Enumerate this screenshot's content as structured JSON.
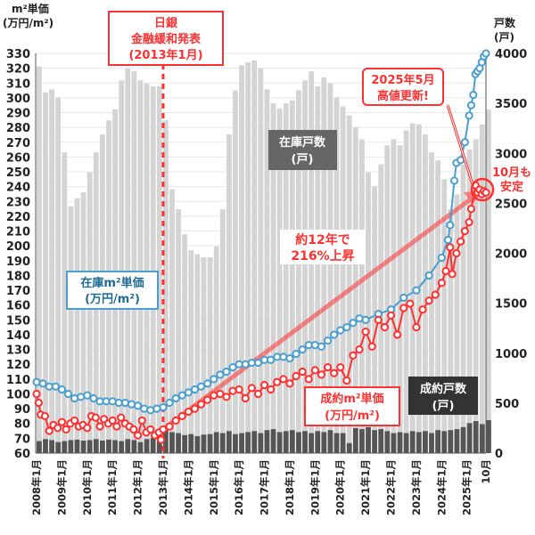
{
  "chart_data": {
    "type": "bar+line",
    "left_axis": {
      "title_line1": "m²単価",
      "title_line2": "(万円/m²)",
      "range": [
        60,
        330
      ],
      "ticks": [
        60,
        70,
        80,
        90,
        100,
        110,
        120,
        130,
        140,
        150,
        160,
        170,
        180,
        190,
        200,
        210,
        220,
        230,
        240,
        250,
        260,
        270,
        280,
        290,
        300,
        310,
        320,
        330
      ]
    },
    "right_axis": {
      "title_line1": "戸数",
      "title_line2": "(戸)",
      "range": [
        0,
        4000
      ],
      "ticks": [
        0,
        500,
        1000,
        1500,
        2000,
        2500,
        3000,
        3500,
        4000
      ]
    },
    "x_axis": {
      "range": [
        "2008-01",
        "2025-10"
      ],
      "tick_dates": [
        "2008-01",
        "2009-01",
        "2010-01",
        "2011-01",
        "2012-01",
        "2013-01",
        "2014-01",
        "2015-01",
        "2016-01",
        "2017-01",
        "2018-01",
        "2019-01",
        "2020-01",
        "2021-01",
        "2022-01",
        "2023-01",
        "2024-01",
        "2025-01",
        "2025-10"
      ],
      "tick_labels": [
        "2008年1月",
        "2009年1月",
        "2010年1月",
        "2011年1月",
        "2012年1月",
        "2013年1月",
        "2014年1月",
        "2015年1月",
        "2016年1月",
        "2017年1月",
        "2018年1月",
        "2019年1月",
        "2020年1月",
        "2021年1月",
        "2022年1月",
        "2023年1月",
        "2024年1月",
        "2025年1月",
        "10月"
      ]
    },
    "grid": "horizontal",
    "series": [
      {
        "name": "在庫戸数(戸)",
        "kind": "bar",
        "axis": "right",
        "color": "#d4d4d4",
        "dates": [
          "2008-01",
          "2008-04",
          "2008-07",
          "2008-10",
          "2009-01",
          "2009-04",
          "2009-07",
          "2009-10",
          "2010-01",
          "2010-04",
          "2010-07",
          "2010-10",
          "2011-01",
          "2011-04",
          "2011-07",
          "2011-10",
          "2012-01",
          "2012-04",
          "2012-07",
          "2012-10",
          "2013-01",
          "2013-04",
          "2013-07",
          "2013-10",
          "2014-01",
          "2014-04",
          "2014-07",
          "2014-10",
          "2015-01",
          "2015-04",
          "2015-07",
          "2015-10",
          "2016-01",
          "2016-04",
          "2016-07",
          "2016-10",
          "2017-01",
          "2017-04",
          "2017-07",
          "2017-10",
          "2018-01",
          "2018-04",
          "2018-07",
          "2018-10",
          "2019-01",
          "2019-04",
          "2019-07",
          "2019-10",
          "2020-01",
          "2020-04",
          "2020-07",
          "2020-10",
          "2021-01",
          "2021-04",
          "2021-07",
          "2021-10",
          "2022-01",
          "2022-04",
          "2022-07",
          "2022-10",
          "2023-01",
          "2023-04",
          "2023-07",
          "2023-10",
          "2024-01",
          "2024-04",
          "2024-07",
          "2024-10",
          "2025-01",
          "2025-04",
          "2025-07",
          "2025-10"
        ],
        "values": [
          3870,
          3610,
          3640,
          3560,
          3010,
          2470,
          2550,
          2610,
          2810,
          3010,
          3190,
          3330,
          3440,
          3730,
          3850,
          3820,
          3730,
          3700,
          3670,
          3670,
          3330,
          2640,
          2440,
          2190,
          2030,
          1990,
          1960,
          1960,
          2070,
          2440,
          3190,
          3630,
          3880,
          3910,
          3930,
          3850,
          3640,
          3500,
          3450,
          3500,
          3530,
          3630,
          3730,
          3820,
          3670,
          3760,
          3700,
          3560,
          3470,
          3380,
          3260,
          3140,
          2810,
          2670,
          2890,
          3080,
          3140,
          3080,
          3230,
          3300,
          3290,
          3190,
          3010,
          2930,
          2740,
          2440,
          2590,
          2890,
          3040,
          3140,
          3290,
          3440
        ]
      },
      {
        "name": "成約戸数(戸)",
        "kind": "bar",
        "axis": "right",
        "color": "#555555",
        "dates": [
          "2008-01",
          "2008-04",
          "2008-07",
          "2008-10",
          "2009-01",
          "2009-04",
          "2009-07",
          "2009-10",
          "2010-01",
          "2010-04",
          "2010-07",
          "2010-10",
          "2011-01",
          "2011-04",
          "2011-07",
          "2011-10",
          "2012-01",
          "2012-04",
          "2012-07",
          "2012-10",
          "2013-01",
          "2013-04",
          "2013-07",
          "2013-10",
          "2014-01",
          "2014-04",
          "2014-07",
          "2014-10",
          "2015-01",
          "2015-04",
          "2015-07",
          "2015-10",
          "2016-01",
          "2016-04",
          "2016-07",
          "2016-10",
          "2017-01",
          "2017-04",
          "2017-07",
          "2017-10",
          "2018-01",
          "2018-04",
          "2018-07",
          "2018-10",
          "2019-01",
          "2019-04",
          "2019-07",
          "2019-10",
          "2020-01",
          "2020-04",
          "2020-07",
          "2020-10",
          "2021-01",
          "2021-04",
          "2021-07",
          "2021-10",
          "2022-01",
          "2022-04",
          "2022-07",
          "2022-10",
          "2023-01",
          "2023-04",
          "2023-07",
          "2023-10",
          "2024-01",
          "2024-04",
          "2024-07",
          "2024-10",
          "2025-01",
          "2025-04",
          "2025-07",
          "2025-10"
        ],
        "values": [
          120,
          140,
          130,
          110,
          120,
          130,
          135,
          125,
          130,
          140,
          125,
          135,
          130,
          120,
          140,
          130,
          110,
          140,
          150,
          145,
          230,
          210,
          200,
          180,
          190,
          170,
          185,
          190,
          210,
          200,
          220,
          190,
          200,
          210,
          220,
          200,
          230,
          240,
          210,
          220,
          230,
          210,
          220,
          200,
          220,
          210,
          230,
          200,
          200,
          100,
          250,
          240,
          260,
          230,
          240,
          220,
          200,
          210,
          200,
          220,
          210,
          220,
          200,
          230,
          220,
          230,
          240,
          260,
          300,
          320,
          290,
          330
        ]
      },
      {
        "name": "在庫m²単価(万円/m²)",
        "kind": "line",
        "axis": "left",
        "color": "#4a9fd0",
        "dates": [
          "2008-01",
          "2008-04",
          "2008-07",
          "2008-10",
          "2009-01",
          "2009-04",
          "2009-07",
          "2009-10",
          "2010-01",
          "2010-04",
          "2010-07",
          "2010-10",
          "2011-01",
          "2011-04",
          "2011-07",
          "2011-10",
          "2012-01",
          "2012-04",
          "2012-07",
          "2012-10",
          "2013-01",
          "2013-04",
          "2013-07",
          "2013-10",
          "2014-01",
          "2014-04",
          "2014-07",
          "2014-10",
          "2015-01",
          "2015-04",
          "2015-07",
          "2015-10",
          "2016-01",
          "2016-04",
          "2016-07",
          "2016-10",
          "2017-01",
          "2017-04",
          "2017-07",
          "2017-10",
          "2018-01",
          "2018-04",
          "2018-07",
          "2018-10",
          "2019-01",
          "2019-04",
          "2019-07",
          "2019-10",
          "2020-01",
          "2020-04",
          "2020-07",
          "2020-10",
          "2021-01",
          "2021-07",
          "2022-01",
          "2022-07",
          "2023-01",
          "2023-07",
          "2024-01",
          "2024-04",
          "2024-05",
          "2024-07",
          "2024-08",
          "2024-10",
          "2024-12",
          "2025-02",
          "2025-03",
          "2025-04",
          "2025-05",
          "2025-06",
          "2025-07",
          "2025-08",
          "2025-09",
          "2025-10"
        ],
        "values": [
          108,
          107,
          105,
          105,
          103,
          100,
          97,
          98,
          99,
          97,
          95,
          95,
          95,
          94,
          94,
          93,
          92,
          90,
          89,
          90,
          91,
          94,
          97,
          99,
          101,
          103,
          105,
          107,
          110,
          113,
          115,
          118,
          120,
          120,
          121,
          121,
          123,
          123,
          125,
          125,
          124,
          127,
          130,
          133,
          133,
          132,
          136,
          140,
          143,
          145,
          148,
          151,
          150,
          154,
          157,
          165,
          170,
          180,
          192,
          204,
          214,
          244,
          256,
          258,
          270,
          288,
          295,
          302,
          316,
          318,
          320,
          324,
          328,
          330
        ]
      },
      {
        "name": "成約m²単価(万円/m²)",
        "kind": "line",
        "axis": "left",
        "color": "#ff3030",
        "dates": [
          "2008-01",
          "2008-02",
          "2008-03",
          "2008-05",
          "2008-07",
          "2008-09",
          "2008-11",
          "2009-01",
          "2009-03",
          "2009-05",
          "2009-07",
          "2009-09",
          "2009-11",
          "2010-01",
          "2010-03",
          "2010-05",
          "2010-07",
          "2010-09",
          "2010-11",
          "2011-01",
          "2011-03",
          "2011-05",
          "2011-07",
          "2011-09",
          "2011-11",
          "2012-01",
          "2012-03",
          "2012-05",
          "2012-07",
          "2012-09",
          "2012-11",
          "2012-12",
          "2013-01",
          "2013-04",
          "2013-07",
          "2013-10",
          "2014-01",
          "2014-04",
          "2014-07",
          "2014-10",
          "2015-01",
          "2015-04",
          "2015-07",
          "2015-10",
          "2016-01",
          "2016-04",
          "2016-07",
          "2016-10",
          "2017-01",
          "2017-04",
          "2017-07",
          "2017-10",
          "2018-01",
          "2018-04",
          "2018-07",
          "2018-10",
          "2019-01",
          "2019-04",
          "2019-07",
          "2019-10",
          "2020-01",
          "2020-04",
          "2020-07",
          "2020-10",
          "2021-01",
          "2021-04",
          "2021-07",
          "2021-10",
          "2022-01",
          "2022-04",
          "2022-07",
          "2022-10",
          "2023-01",
          "2023-04",
          "2023-07",
          "2023-10",
          "2024-01",
          "2024-03",
          "2024-05",
          "2024-06",
          "2024-08",
          "2024-10",
          "2024-12",
          "2025-02",
          "2025-03",
          "2025-05",
          "2025-06",
          "2025-07",
          "2025-08",
          "2025-09",
          "2025-10"
        ],
        "values": [
          100,
          94,
          86,
          85,
          75,
          79,
          77,
          81,
          76,
          80,
          82,
          78,
          79,
          77,
          85,
          84,
          78,
          83,
          80,
          82,
          78,
          84,
          80,
          78,
          76,
          72,
          82,
          74,
          76,
          72,
          74,
          69,
          76,
          78,
          82,
          85,
          88,
          90,
          93,
          96,
          99,
          100,
          98,
          102,
          103,
          97,
          104,
          100,
          106,
          103,
          108,
          110,
          107,
          112,
          115,
          110,
          116,
          113,
          118,
          114,
          118,
          109,
          126,
          130,
          142,
          132,
          150,
          145,
          153,
          140,
          158,
          161,
          145,
          157,
          163,
          167,
          175,
          183,
          199,
          181,
          195,
          203,
          210,
          216,
          225,
          241,
          236,
          238,
          235,
          237,
          236
        ]
      }
    ],
    "annotations": {
      "boj_line1": "日銀",
      "boj_line2": "金融緩和発表",
      "boj_line3": "(2013年1月)",
      "boj_date": "2013-01",
      "inventory_units_line1": "在庫戸数",
      "inventory_units_line2": "(戸)",
      "inventory_price_line1": "在庫m²単価",
      "inventory_price_line2": "(万円/m²)",
      "rise_line1": "約12年で",
      "rise_line2": "216%上昇",
      "sold_price_line1": "成約m²単価",
      "sold_price_line2": "(万円/m²)",
      "sold_units_line1": "成約戸数",
      "sold_units_line2": "(戸)",
      "high_line1": "2025年5月",
      "high_line2": "高値更新!",
      "oct_line1": "10月も",
      "oct_line2": "安定"
    },
    "colors": {
      "red": "#ff3030",
      "blue": "#4a9fd0",
      "inventory_bar": "#d4d4d4",
      "sold_bar": "#555555"
    }
  }
}
